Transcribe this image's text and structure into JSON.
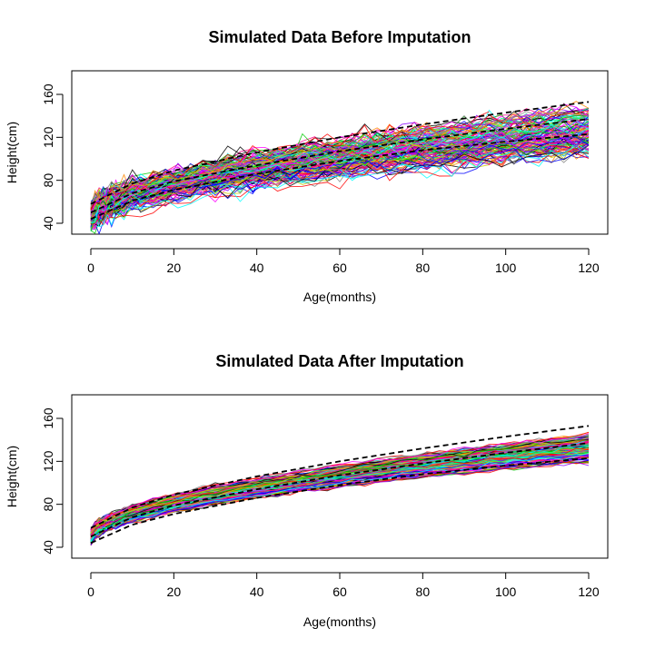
{
  "chart_data": [
    {
      "type": "line",
      "title": "Simulated Data Before Imputation",
      "xlabel": "Age(months)",
      "ylabel": "Height(cm)",
      "xlim": [
        0,
        120
      ],
      "ylim": [
        35,
        180
      ],
      "xticks": [
        0,
        20,
        40,
        60,
        80,
        100,
        120
      ],
      "yticks": [
        40,
        80,
        120,
        160
      ],
      "legend": "none",
      "grid": false,
      "trajectories": {
        "count": 150,
        "x_range": [
          0,
          120
        ],
        "start_range": [
          33,
          58
        ],
        "end_range": [
          105,
          148
        ],
        "noise_sd": 4.5,
        "palette": [
          "#ff0000",
          "#00cc00",
          "#0000ff",
          "#00ffff",
          "#ff00ff",
          "#cccc00",
          "#000000",
          "#ff8800",
          "#8800ff",
          "#00ff88",
          "#888888",
          "#ff0088"
        ]
      },
      "reference_lines": [
        {
          "label": "upper",
          "x": [
            0,
            10,
            20,
            40,
            60,
            80,
            100,
            120
          ],
          "y": [
            58,
            77,
            89,
            106,
            120,
            132,
            143,
            153
          ]
        },
        {
          "label": "middle",
          "x": [
            0,
            10,
            20,
            40,
            60,
            80,
            100,
            120
          ],
          "y": [
            50,
            68,
            79,
            94,
            107,
            118,
            128,
            137
          ]
        },
        {
          "label": "lower",
          "x": [
            0,
            10,
            20,
            40,
            60,
            80,
            100,
            120
          ],
          "y": [
            44,
            61,
            71,
            86,
            98,
            108,
            116,
            123
          ]
        }
      ]
    },
    {
      "type": "line",
      "title": "Simulated Data After Imputation",
      "xlabel": "Age(months)",
      "ylabel": "Height(cm)",
      "xlim": [
        0,
        120
      ],
      "ylim": [
        35,
        180
      ],
      "xticks": [
        0,
        20,
        40,
        60,
        80,
        100,
        120
      ],
      "yticks": [
        40,
        80,
        120,
        160
      ],
      "legend": "none",
      "grid": false,
      "trajectories": {
        "count": 150,
        "x_range": [
          0,
          120
        ],
        "start_range": [
          42,
          57
        ],
        "end_range": [
          120,
          145
        ],
        "noise_sd": 1.2,
        "palette": [
          "#ff0000",
          "#00cc00",
          "#0000ff",
          "#00ffff",
          "#ff00ff",
          "#cccc00",
          "#000000",
          "#ff8800",
          "#8800ff",
          "#00ff88",
          "#888888",
          "#ff0088"
        ]
      },
      "reference_lines": [
        {
          "label": "upper",
          "x": [
            0,
            10,
            20,
            40,
            60,
            80,
            100,
            120
          ],
          "y": [
            58,
            77,
            89,
            106,
            120,
            132,
            143,
            153
          ]
        },
        {
          "label": "middle",
          "x": [
            0,
            10,
            20,
            40,
            60,
            80,
            100,
            120
          ],
          "y": [
            50,
            68,
            79,
            94,
            107,
            118,
            128,
            137
          ]
        },
        {
          "label": "lower",
          "x": [
            0,
            10,
            20,
            40,
            60,
            80,
            100,
            120
          ],
          "y": [
            44,
            61,
            71,
            86,
            98,
            108,
            116,
            123
          ]
        }
      ]
    }
  ]
}
